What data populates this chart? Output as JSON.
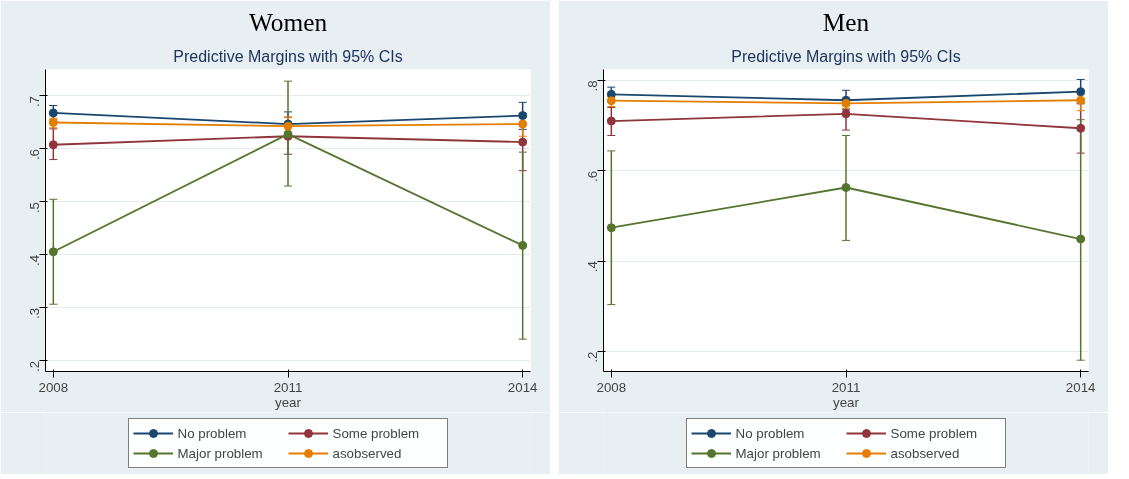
{
  "chart_data": [
    {
      "type": "line",
      "title": "Women",
      "subtitle": "Predictive Margins with 95% CIs",
      "xlabel": "year",
      "x": [
        2008,
        2011,
        2014
      ],
      "xlim": [
        2007.9,
        2014.1
      ],
      "xticks": [
        2008,
        2011,
        2014
      ],
      "ylim": [
        0.18,
        0.75
      ],
      "yticks": [
        {
          "value": 0.2,
          "label": ".2"
        },
        {
          "value": 0.3,
          "label": ".3"
        },
        {
          "value": 0.4,
          "label": ".4"
        },
        {
          "value": 0.5,
          "label": ".5"
        },
        {
          "value": 0.6,
          "label": ".6"
        },
        {
          "value": 0.7,
          "label": ".7"
        }
      ],
      "grid": "y",
      "legend": "bottom",
      "marker": "circle",
      "series": [
        {
          "name": "No problem",
          "color": "#1a476f",
          "values": [
            0.668,
            0.647,
            0.663
          ],
          "errors": [
            [
              0.655,
              0.682
            ],
            [
              0.625,
              0.67
            ],
            [
              0.637,
              0.688
            ]
          ]
        },
        {
          "name": "Some problem",
          "color": "#90353b",
          "values": [
            0.608,
            0.624,
            0.613
          ],
          "errors": [
            [
              0.58,
              0.638
            ],
            [
              0.59,
              0.66
            ],
            [
              0.559,
              0.667
            ]
          ]
        },
        {
          "name": "Major problem",
          "color": "#55752f",
          "values": [
            0.406,
            0.628,
            0.418
          ],
          "errors": [
            [
              0.307,
              0.505
            ],
            [
              0.53,
              0.728
            ],
            [
              0.241,
              0.594
            ]
          ]
        },
        {
          "name": "asobserved",
          "color": "#e37e00",
          "values": [
            0.65,
            0.643,
            0.647
          ],
          "errors": [
            [
              0.64,
              0.658
            ],
            [
              0.63,
              0.66
            ],
            [
              0.624,
              0.66
            ]
          ]
        }
      ]
    },
    {
      "type": "line",
      "title": "Men",
      "subtitle": "Predictive Margins with 95% CIs",
      "xlabel": "year",
      "x": [
        2008,
        2011,
        2014
      ],
      "xlim": [
        2007.9,
        2014.1
      ],
      "xticks": [
        2008,
        2011,
        2014
      ],
      "ylim": [
        0.156,
        0.824
      ],
      "yticks": [
        {
          "value": 0.2,
          "label": ".2"
        },
        {
          "value": 0.4,
          "label": ".4"
        },
        {
          "value": 0.6,
          "label": ".6"
        },
        {
          "value": 0.8,
          "label": ".8"
        }
      ],
      "grid": "y",
      "legend": "bottom",
      "marker": "circle",
      "series": [
        {
          "name": "No problem",
          "color": "#1a476f",
          "values": [
            0.769,
            0.756,
            0.775
          ],
          "errors": [
            [
              0.755,
              0.785
            ],
            [
              0.735,
              0.778
            ],
            [
              0.75,
              0.802
            ]
          ]
        },
        {
          "name": "Some problem",
          "color": "#90353b",
          "values": [
            0.71,
            0.726,
            0.694
          ],
          "errors": [
            [
              0.678,
              0.74
            ],
            [
              0.69,
              0.76
            ],
            [
              0.639,
              0.748
            ]
          ]
        },
        {
          "name": "Major problem",
          "color": "#55752f",
          "values": [
            0.474,
            0.563,
            0.449
          ],
          "errors": [
            [
              0.304,
              0.644
            ],
            [
              0.446,
              0.678
            ],
            [
              0.181,
              0.713
            ]
          ]
        },
        {
          "name": "asobserved",
          "color": "#e37e00",
          "values": [
            0.755,
            0.749,
            0.756
          ],
          "errors": [
            [
              0.742,
              0.765
            ],
            [
              0.738,
              0.76
            ],
            [
              0.733,
              0.768
            ]
          ]
        }
      ]
    }
  ]
}
